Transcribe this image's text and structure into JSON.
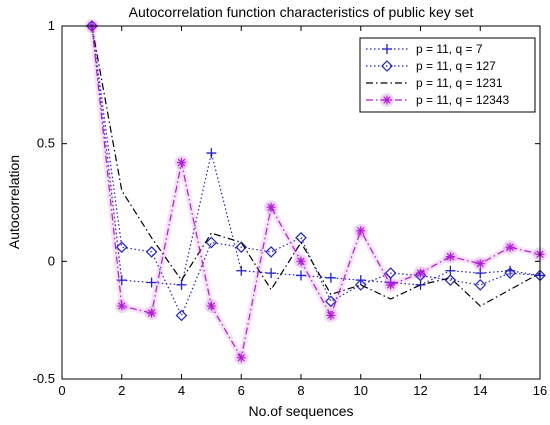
{
  "chart_data": {
    "type": "line",
    "title": "Autocorrelation function characteristics of public key set",
    "xlabel": "No.of sequences",
    "ylabel": "Autocorrelation",
    "xlim": [
      0,
      16
    ],
    "ylim": [
      -0.5,
      1
    ],
    "xticks": [
      "0",
      "2",
      "4",
      "6",
      "8",
      "10",
      "12",
      "14",
      "16"
    ],
    "yticks": [
      "-0.5",
      "0",
      "0.5",
      "1"
    ],
    "x": [
      1,
      2,
      3,
      4,
      5,
      6,
      7,
      8,
      9,
      10,
      11,
      12,
      13,
      14,
      15,
      16
    ],
    "grid": false,
    "legend_position": "top-right",
    "series": [
      {
        "name": "p = 11, q = 7",
        "color": "#1f1fd6",
        "line_style": "dotted",
        "marker": "plus",
        "values": [
          1,
          -0.08,
          -0.09,
          -0.1,
          0.46,
          -0.04,
          -0.05,
          -0.06,
          -0.07,
          -0.08,
          -0.09,
          -0.1,
          -0.04,
          -0.05,
          -0.04,
          -0.06
        ]
      },
      {
        "name": "p = 11, q = 127",
        "color": "#1f1fd6",
        "line_style": "dotted",
        "marker": "diamond",
        "values": [
          1,
          0.06,
          0.04,
          -0.23,
          0.08,
          0.06,
          0.04,
          0.1,
          -0.17,
          -0.1,
          -0.05,
          -0.06,
          -0.08,
          -0.1,
          -0.05,
          -0.06
        ]
      },
      {
        "name": "p = 11, q = 1231",
        "color": "#000000",
        "line_style": "dashdot",
        "marker": "none",
        "values": [
          1,
          0.3,
          0.1,
          -0.08,
          0.12,
          0.08,
          -0.12,
          0.08,
          -0.14,
          -0.1,
          -0.16,
          -0.1,
          -0.07,
          -0.19,
          -0.12,
          -0.05
        ]
      },
      {
        "name": "p = 11, q = 12343",
        "color": "#b319d9",
        "line_style": "dashdot",
        "marker": "star",
        "values": [
          1,
          -0.19,
          -0.22,
          0.42,
          -0.19,
          -0.41,
          0.23,
          0.0,
          -0.23,
          0.13,
          -0.1,
          -0.05,
          0.02,
          -0.01,
          0.06,
          0.03
        ]
      }
    ]
  }
}
